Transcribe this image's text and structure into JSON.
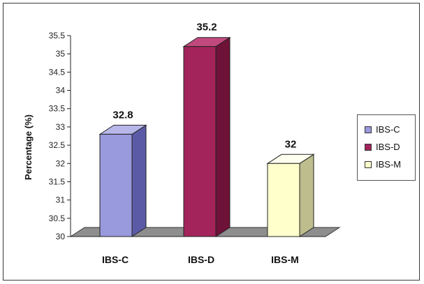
{
  "chart_data": {
    "type": "bar",
    "categories": [
      "IBS-C",
      "IBS-D",
      "IBS-M"
    ],
    "values": [
      32.8,
      35.2,
      32
    ],
    "data_labels": [
      "32.8",
      "35.2",
      "32"
    ],
    "title": "",
    "xlabel": "",
    "ylabel": "Percentage (%)",
    "ylim": [
      30,
      35.5
    ],
    "yticks": [
      "30",
      "30.5",
      "31",
      "31.5",
      "32",
      "32.5",
      "33",
      "33.5",
      "34",
      "34.5",
      "35",
      "35.5"
    ],
    "grid": false,
    "legend_position": "right",
    "legend": [
      "IBS-C",
      "IBS-D",
      "IBS-M"
    ],
    "colors": [
      {
        "front": "#9999dd",
        "side": "#5a5aa6",
        "top": "#b7b7ea"
      },
      {
        "front": "#a3245a",
        "side": "#6e1238",
        "top": "#c2497d"
      },
      {
        "front": "#ffffcc",
        "side": "#bdbd8e",
        "top": "#fffff0"
      }
    ],
    "floor_color": "#8e8e8e"
  }
}
